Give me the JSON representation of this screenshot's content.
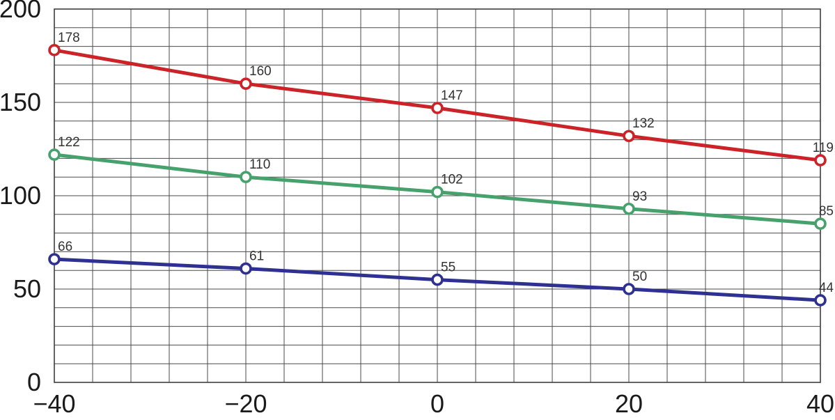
{
  "chart_data": {
    "type": "line",
    "title": "",
    "xlabel": "",
    "ylabel": "",
    "x": [
      -40,
      -20,
      0,
      20,
      40
    ],
    "x_tick_labels": [
      "−40",
      "−20",
      "0",
      "20",
      "40"
    ],
    "y_ticks": [
      0,
      50,
      100,
      150,
      200
    ],
    "y_tick_labels": [
      "0",
      "50",
      "100",
      "150",
      "200"
    ],
    "xlim": [
      -40,
      40
    ],
    "ylim": [
      0,
      200
    ],
    "x_minor_step": 4,
    "y_minor_step": 10,
    "grid": "minor-both",
    "legend": "none",
    "marker": "open-circle",
    "data_labels_visible": true,
    "series": [
      {
        "name": "series-red",
        "color": "#cb2328",
        "values": [
          178,
          160,
          147,
          132,
          119
        ]
      },
      {
        "name": "series-green",
        "color": "#47a16c",
        "values": [
          122,
          110,
          102,
          93,
          85
        ]
      },
      {
        "name": "series-blue",
        "color": "#2e3192",
        "values": [
          66,
          61,
          55,
          50,
          44
        ]
      }
    ],
    "colors": {
      "background": "#ffffff",
      "grid": "#4a4a4a",
      "axis_text": "#1a1a1a",
      "data_label_text": "#333333",
      "marker_fill": "#ffffff"
    }
  }
}
